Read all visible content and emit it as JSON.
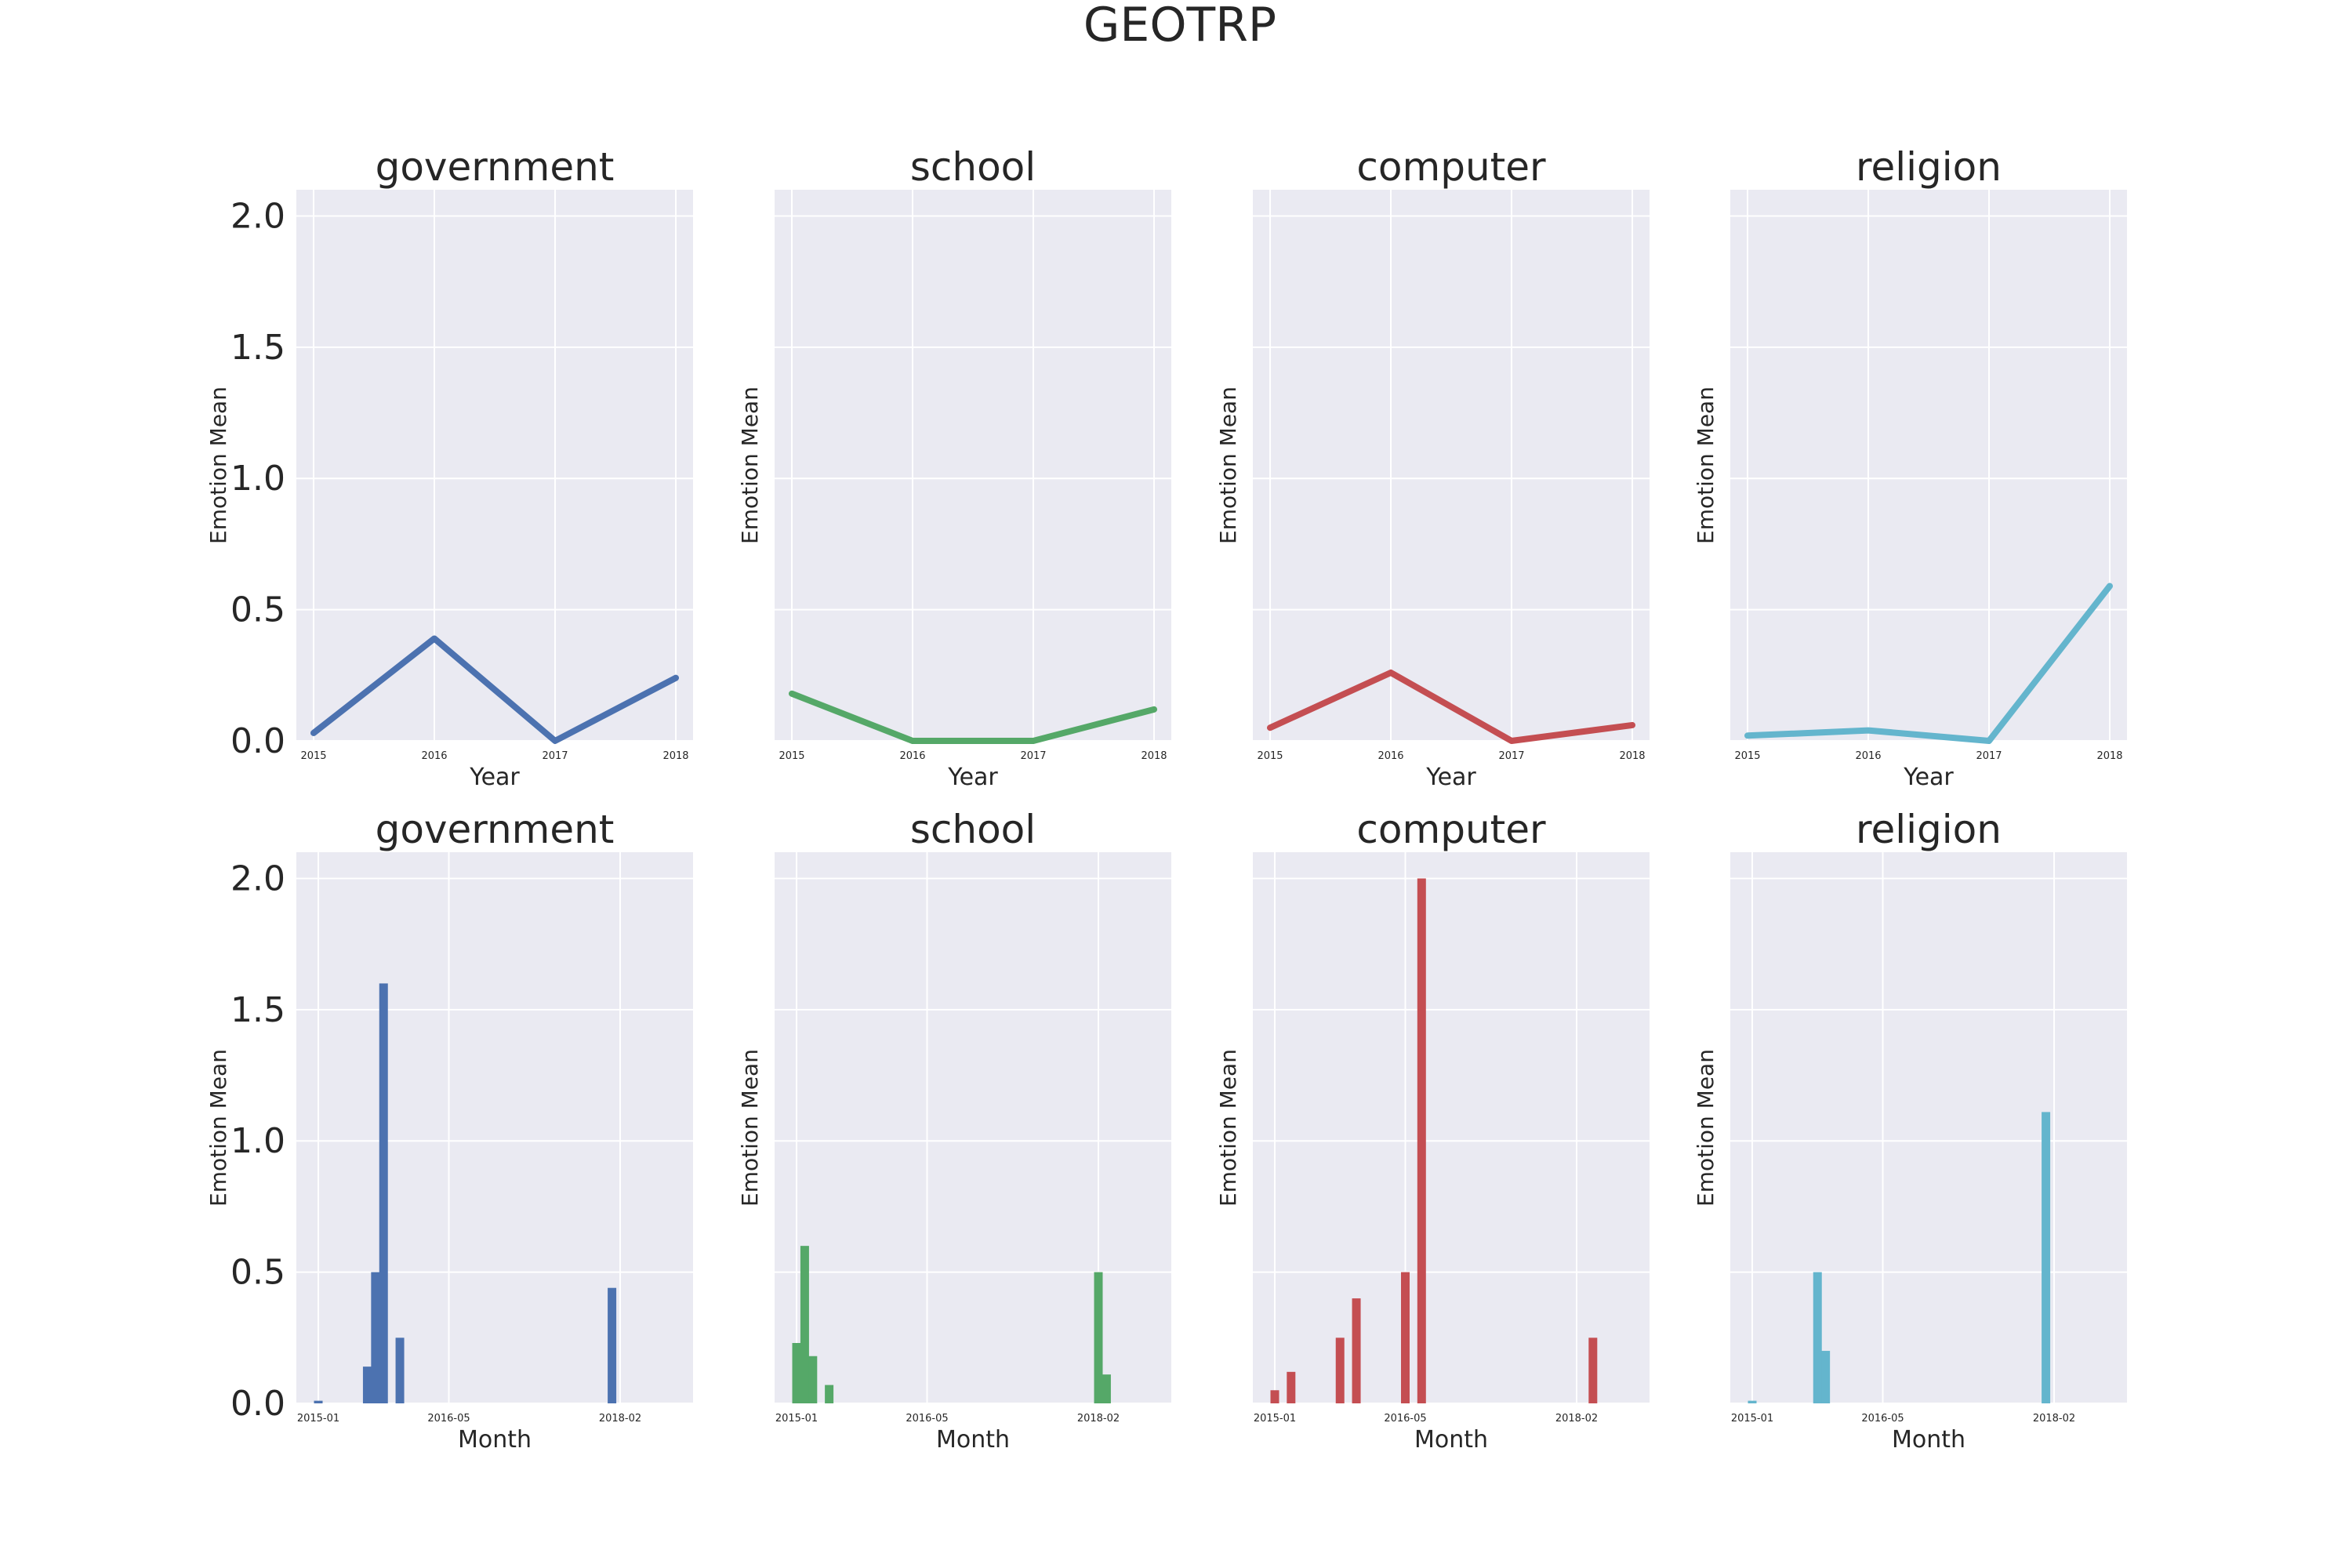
{
  "chart_data": {
    "title": "GEOTRP",
    "y_ticks": [
      "0.0",
      "0.5",
      "1.0",
      "1.5",
      "2.0"
    ],
    "ylim": [
      0,
      2.1
    ],
    "panels": [
      {
        "type": "line",
        "title": "government",
        "xlabel": "Year",
        "ylabel": "Emotion Mean",
        "color": "#4C72B0",
        "x": [
          2015,
          2016,
          2017,
          2018
        ],
        "x_ticks": [
          "2015",
          "2016",
          "2017",
          "2018"
        ],
        "values": [
          0.03,
          0.39,
          0.0,
          0.24
        ]
      },
      {
        "type": "line",
        "title": "school",
        "xlabel": "Year",
        "ylabel": "Emotion Mean",
        "color": "#55A868",
        "x": [
          2015,
          2016,
          2017,
          2018
        ],
        "x_ticks": [
          "2015",
          "2016",
          "2017",
          "2018"
        ],
        "values": [
          0.18,
          0.0,
          0.0,
          0.12
        ]
      },
      {
        "type": "line",
        "title": "computer",
        "xlabel": "Year",
        "ylabel": "Emotion Mean",
        "color": "#C44E52",
        "x": [
          2015,
          2016,
          2017,
          2018
        ],
        "x_ticks": [
          "2015",
          "2016",
          "2017",
          "2018"
        ],
        "values": [
          0.05,
          0.26,
          0.0,
          0.06
        ]
      },
      {
        "type": "line",
        "title": "religion",
        "xlabel": "Year",
        "ylabel": "Emotion Mean",
        "color": "#64B5CD",
        "x": [
          2015,
          2016,
          2017,
          2018
        ],
        "x_ticks": [
          "2015",
          "2016",
          "2017",
          "2018"
        ],
        "values": [
          0.02,
          0.04,
          0.0,
          0.59
        ]
      },
      {
        "type": "bar",
        "title": "government",
        "xlabel": "Month",
        "ylabel": "Emotion Mean",
        "color": "#4C72B0",
        "x_ticks": [
          "2015-01",
          "2016-05",
          "2018-02"
        ],
        "x": [
          "2015-01",
          "2015-07",
          "2015-08",
          "2015-09",
          "2015-11",
          "2018-01"
        ],
        "values": [
          0.01,
          0.14,
          0.5,
          1.6,
          0.25,
          0.44
        ]
      },
      {
        "type": "bar",
        "title": "school",
        "xlabel": "Month",
        "ylabel": "Emotion Mean",
        "color": "#55A868",
        "x_ticks": [
          "2015-01",
          "2016-05",
          "2018-02"
        ],
        "x": [
          "2015-01",
          "2015-02",
          "2015-03",
          "2015-05",
          "2018-02",
          "2018-03"
        ],
        "values": [
          0.23,
          0.6,
          0.18,
          0.07,
          0.5,
          0.11
        ]
      },
      {
        "type": "bar",
        "title": "computer",
        "xlabel": "Month",
        "ylabel": "Emotion Mean",
        "color": "#C44E52",
        "x_ticks": [
          "2015-01",
          "2016-05",
          "2018-02"
        ],
        "x": [
          "2015-01",
          "2015-03",
          "2015-09",
          "2015-11",
          "2016-05",
          "2016-07",
          "2018-04"
        ],
        "values": [
          0.05,
          0.12,
          0.25,
          0.4,
          0.5,
          2.0,
          0.25
        ]
      },
      {
        "type": "bar",
        "title": "religion",
        "xlabel": "Month",
        "ylabel": "Emotion Mean",
        "color": "#64B5CD",
        "x_ticks": [
          "2015-01",
          "2016-05",
          "2018-02"
        ],
        "x": [
          "2015-01",
          "2015-09",
          "2015-10",
          "2018-01"
        ],
        "values": [
          0.01,
          0.5,
          0.2,
          1.11
        ]
      }
    ]
  }
}
